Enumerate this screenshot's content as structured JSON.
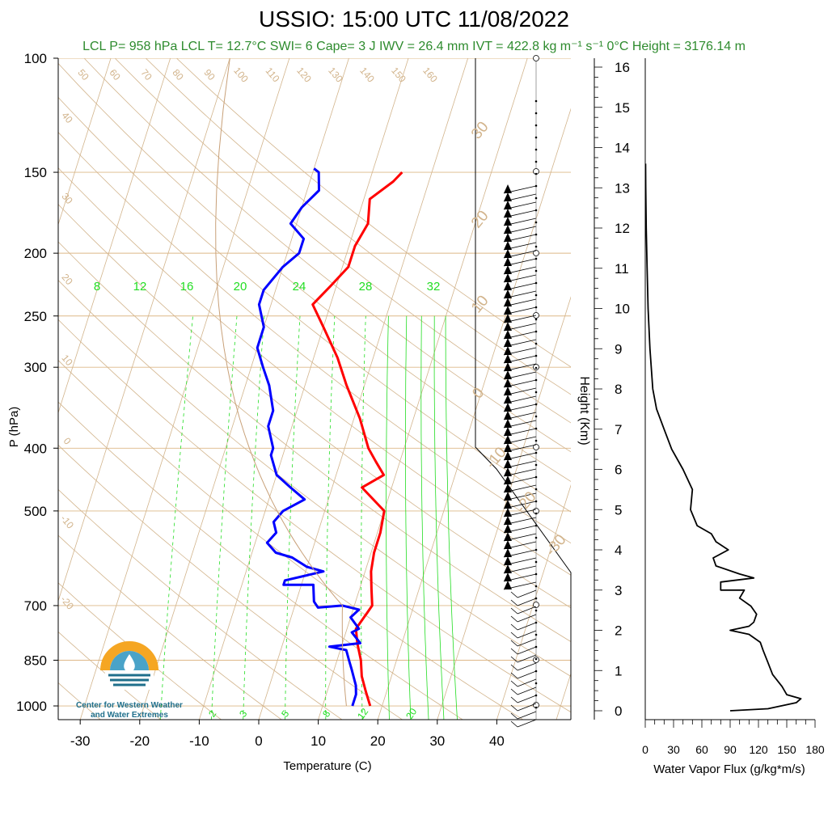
{
  "title": "USSIO: 15:00 UTC 11/08/2022",
  "stats_line": "LCL P= 958 hPa  LCL T= 12.7°C  SWI= 6  Cape= 3 J  IWV = 26.4 mm  IVT = 422.8 kg m⁻¹ s⁻¹  0°C Height = 3176.14 m",
  "logo": {
    "line1": "Center for Western Weather",
    "line2": "and Water Extremes",
    "icon": "water-drop-sun-icon"
  },
  "colors": {
    "temperature": "#ff0000",
    "dewpoint": "#0000ff",
    "mixing_ratio": "#22dd22",
    "adiabat": "#d2b48c",
    "isobar": "#deb887",
    "wind": "#000000",
    "flux": "#000000"
  },
  "chart_data": [
    {
      "type": "line",
      "name": "skew-t",
      "xlabel": "Temperature (C)",
      "ylabel": "P (hPa)",
      "log_y": true,
      "ylim": [
        1050,
        100
      ],
      "xlim": [
        -33,
        50
      ],
      "x_ticks": [
        -30,
        -20,
        -10,
        0,
        10,
        20,
        30,
        40
      ],
      "y_ticks": [
        100,
        150,
        200,
        250,
        300,
        400,
        500,
        700,
        850,
        1000
      ],
      "dry_adiabat_labels": [
        50,
        60,
        70,
        80,
        90,
        100,
        110,
        120,
        130,
        140,
        150,
        160
      ],
      "isotherm_labels_left": [
        40,
        30,
        20,
        10,
        0,
        -10,
        -20
      ],
      "isotherm_labels_right": [
        30,
        20,
        10,
        0,
        -10,
        -20,
        -30
      ],
      "mixing_ratio_top_labels": [
        8,
        12,
        16,
        20,
        24,
        28,
        32
      ],
      "mixing_ratio_bottom_labels": [
        2,
        3,
        5,
        8,
        12,
        20
      ],
      "series": [
        {
          "name": "temperature",
          "points": [
            [
              18,
              1000
            ],
            [
              16.5,
              950
            ],
            [
              15,
              900
            ],
            [
              14,
              850
            ],
            [
              12.5,
              800
            ],
            [
              11.5,
              760
            ],
            [
              12.5,
              720
            ],
            [
              13,
              700
            ],
            [
              12,
              660
            ],
            [
              11,
              620
            ],
            [
              10.5,
              580
            ],
            [
              10.5,
              540
            ],
            [
              10,
              500
            ],
            [
              5,
              460
            ],
            [
              8,
              440
            ],
            [
              6,
              420
            ],
            [
              4,
              400
            ],
            [
              1,
              360
            ],
            [
              -3,
              320
            ],
            [
              -6,
              290
            ],
            [
              -10,
              260
            ],
            [
              -13,
              240
            ],
            [
              -11,
              225
            ],
            [
              -9,
              210
            ],
            [
              -9,
              195
            ],
            [
              -8,
              180
            ],
            [
              -9,
              165
            ],
            [
              -6,
              155
            ],
            [
              -5,
              150
            ]
          ]
        },
        {
          "name": "dewpoint",
          "points": [
            [
              15,
              1000
            ],
            [
              15,
              960
            ],
            [
              14.5,
              930
            ],
            [
              13,
              880
            ],
            [
              12,
              850
            ],
            [
              11,
              820
            ],
            [
              8,
              810
            ],
            [
              13,
              800
            ],
            [
              11,
              770
            ],
            [
              12,
              760
            ],
            [
              10,
              730
            ],
            [
              11,
              710
            ],
            [
              8,
              700
            ],
            [
              4,
              705
            ],
            [
              3,
              690
            ],
            [
              2,
              650
            ],
            [
              -3,
              650
            ],
            [
              -3,
              640
            ],
            [
              3,
              620
            ],
            [
              0,
              610
            ],
            [
              -3,
              590
            ],
            [
              -6,
              580
            ],
            [
              -8,
              560
            ],
            [
              -7,
              540
            ],
            [
              -8,
              520
            ],
            [
              -7,
              500
            ],
            [
              -4,
              480
            ],
            [
              -7,
              460
            ],
            [
              -10,
              440
            ],
            [
              -12,
              410
            ],
            [
              -12,
              400
            ],
            [
              -14,
              370
            ],
            [
              -14,
              350
            ],
            [
              -16,
              320
            ],
            [
              -18,
              300
            ],
            [
              -20,
              280
            ],
            [
              -20,
              260
            ],
            [
              -22,
              240
            ],
            [
              -22,
              228
            ],
            [
              -20,
              210
            ],
            [
              -18,
              200
            ],
            [
              -18,
              190
            ],
            [
              -21,
              180
            ],
            [
              -20,
              170
            ],
            [
              -18,
              160
            ],
            [
              -19,
              150
            ],
            [
              -20,
              148
            ]
          ]
        }
      ]
    },
    {
      "type": "line",
      "name": "water-vapor-flux",
      "xlabel": "Water Vapor Flux (g/kg*m/s)",
      "ylabel": "Height (Km)",
      "xlim": [
        0,
        180
      ],
      "ylim": [
        -0.3,
        16.5
      ],
      "x_ticks": [
        0,
        30,
        60,
        90,
        120,
        150,
        180
      ],
      "y_ticks": [
        0,
        1,
        2,
        3,
        4,
        5,
        6,
        7,
        8,
        9,
        10,
        11,
        12,
        13,
        14,
        15,
        16
      ],
      "series": [
        {
          "name": "flux",
          "points": [
            [
              90,
              0
            ],
            [
              130,
              0.05
            ],
            [
              160,
              0.2
            ],
            [
              165,
              0.3
            ],
            [
              150,
              0.4
            ],
            [
              145,
              0.6
            ],
            [
              135,
              0.9
            ],
            [
              130,
              1.2
            ],
            [
              125,
              1.5
            ],
            [
              122,
              1.7
            ],
            [
              110,
              1.9
            ],
            [
              90,
              2.0
            ],
            [
              110,
              2.1
            ],
            [
              115,
              2.2
            ],
            [
              118,
              2.4
            ],
            [
              112,
              2.6
            ],
            [
              100,
              2.8
            ],
            [
              105,
              3.0
            ],
            [
              80,
              3.0
            ],
            [
              80,
              3.2
            ],
            [
              115,
              3.3
            ],
            [
              100,
              3.4
            ],
            [
              75,
              3.6
            ],
            [
              72,
              3.8
            ],
            [
              88,
              4.0
            ],
            [
              75,
              4.2
            ],
            [
              70,
              4.4
            ],
            [
              55,
              4.6
            ],
            [
              48,
              5.0
            ],
            [
              50,
              5.5
            ],
            [
              40,
              6.0
            ],
            [
              28,
              6.5
            ],
            [
              20,
              7.0
            ],
            [
              12,
              7.5
            ],
            [
              8,
              8.0
            ],
            [
              5,
              9.0
            ],
            [
              3,
              10.0
            ],
            [
              2,
              11.0
            ],
            [
              1,
              12.0
            ],
            [
              0.5,
              13.0
            ],
            [
              0.3,
              13.6
            ]
          ]
        }
      ]
    }
  ]
}
